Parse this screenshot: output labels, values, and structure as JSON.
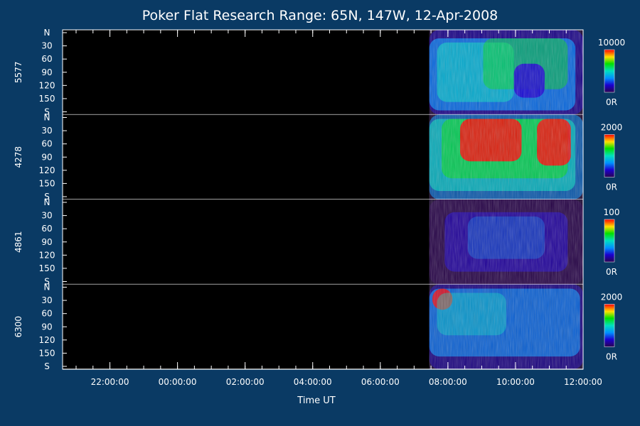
{
  "chart_data": {
    "type": "heatmap",
    "title": "Poker Flat Research Range: 65N, 147W, 12-Apr-2008",
    "xlabel": "Time UT",
    "x_ticks": [
      "22:00:00",
      "00:00:00",
      "02:00:00",
      "04:00:00",
      "06:00:00",
      "08:00:00",
      "10:00:00",
      "12:00:00"
    ],
    "x_range_hours": [
      20.6,
      36.0
    ],
    "y_ticks": [
      "N",
      "30",
      "60",
      "90",
      "120",
      "150",
      "S"
    ],
    "y_range_deg": [
      0,
      180
    ],
    "data_start_hours": 31.45,
    "panels": [
      {
        "label": "5577",
        "colorbar_max": "10000",
        "colorbar_min": "0R"
      },
      {
        "label": "4278",
        "colorbar_max": "2000",
        "colorbar_min": "0R"
      },
      {
        "label": "4861",
        "colorbar_max": "100",
        "colorbar_min": "0R"
      },
      {
        "label": "6300",
        "colorbar_max": "2000",
        "colorbar_min": "0R"
      }
    ],
    "colorscale": [
      "#2a0050",
      "#1a00d0",
      "#0090ff",
      "#00e0c0",
      "#00e000",
      "#ffe000",
      "#ff0000"
    ]
  }
}
